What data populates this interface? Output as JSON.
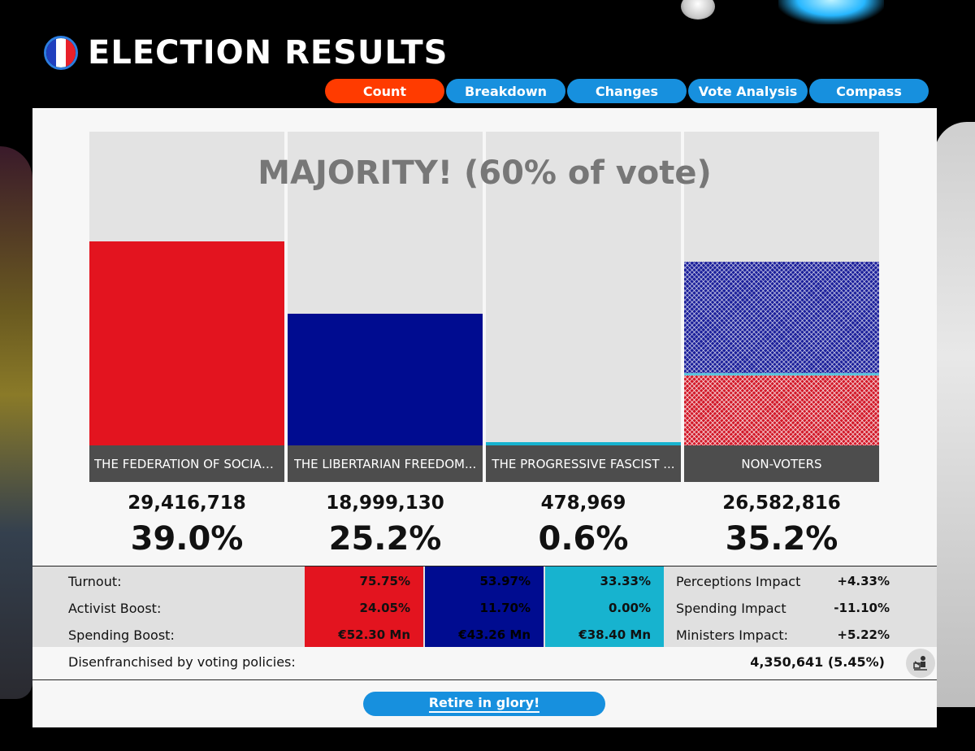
{
  "header": {
    "title": "ELECTION RESULTS"
  },
  "tabs": [
    {
      "label": "Count",
      "active": true
    },
    {
      "label": "Breakdown",
      "active": false
    },
    {
      "label": "Changes",
      "active": false
    },
    {
      "label": "Vote Analysis",
      "active": false
    },
    {
      "label": "Compass",
      "active": false
    }
  ],
  "chart": {
    "majority_label": "MAJORITY! (60% of vote)"
  },
  "chart_data": {
    "type": "bar",
    "categories": [
      "THE FEDERATION OF SOCIAL...",
      "THE LIBERTARIAN FREEDOM...",
      "THE PROGRESSIVE FASCIST ...",
      "NON-VOTERS"
    ],
    "counts": [
      "29,416,718",
      "18,999,130",
      "478,969",
      "26,582,816"
    ],
    "percent_labels": [
      "39.0%",
      "25.2%",
      "0.6%",
      "35.2%"
    ],
    "values": [
      39.0,
      25.2,
      0.6,
      35.2
    ],
    "colors": [
      "#e3141f",
      "#000c90",
      "#17b3cf",
      "#1b1f9a"
    ],
    "nonvoter_breakdown": {
      "blue_share": 0.62,
      "red_share": 0.38
    },
    "ylim": [
      0,
      60
    ]
  },
  "stats": {
    "labels": [
      "Turnout:",
      "Activist Boost:",
      "Spending Boost:"
    ],
    "party_columns": [
      {
        "color": "#e3141f",
        "values": [
          "75.75%",
          "24.05%",
          "€52.30 Mn"
        ]
      },
      {
        "color": "#000c90",
        "values": [
          "53.97%",
          "11.70%",
          "€43.26 Mn"
        ]
      },
      {
        "color": "#17b3cf",
        "values": [
          "33.33%",
          "0.00%",
          "€38.40 Mn"
        ]
      }
    ],
    "impacts": [
      {
        "label": "Perceptions Impact",
        "value": "+4.33%"
      },
      {
        "label": "Spending Impact",
        "value": "-11.10%"
      },
      {
        "label": "Ministers Impact:",
        "value": "+5.22%"
      }
    ]
  },
  "disenfranchised": {
    "label": "Disenfranchised by voting policies:",
    "value": "4,350,641  (5.45%)"
  },
  "retire_button": "Retire in glory!"
}
